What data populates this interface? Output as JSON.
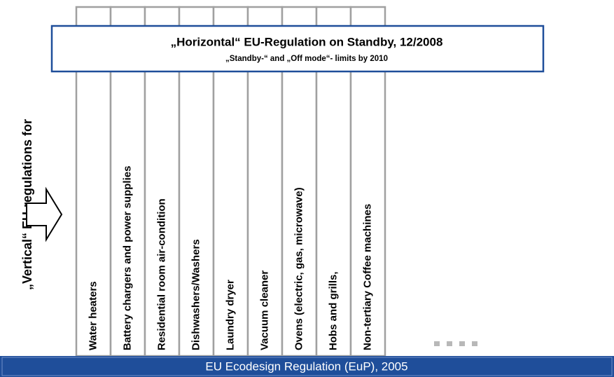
{
  "header": {
    "title": "„Horizontal“ EU-Regulation on Standby, 12/2008",
    "subtitle": "„Standby-“ and „Off mode“- limits by 2010"
  },
  "side_label": "„Vertical“ EU-regulations for",
  "columns": [
    "Water heaters",
    "Battery chargers and power supplies",
    "Residential room air-condition",
    "Dishwashers/Washers",
    "Laundry dryer",
    "Vacuum cleaner",
    "Ovens (electric, gas, microwave)",
    "Hobs and grills,",
    "Non-tertiary Coffee machines"
  ],
  "footer": "EU Ecodesign Regulation (EuP), 2005"
}
